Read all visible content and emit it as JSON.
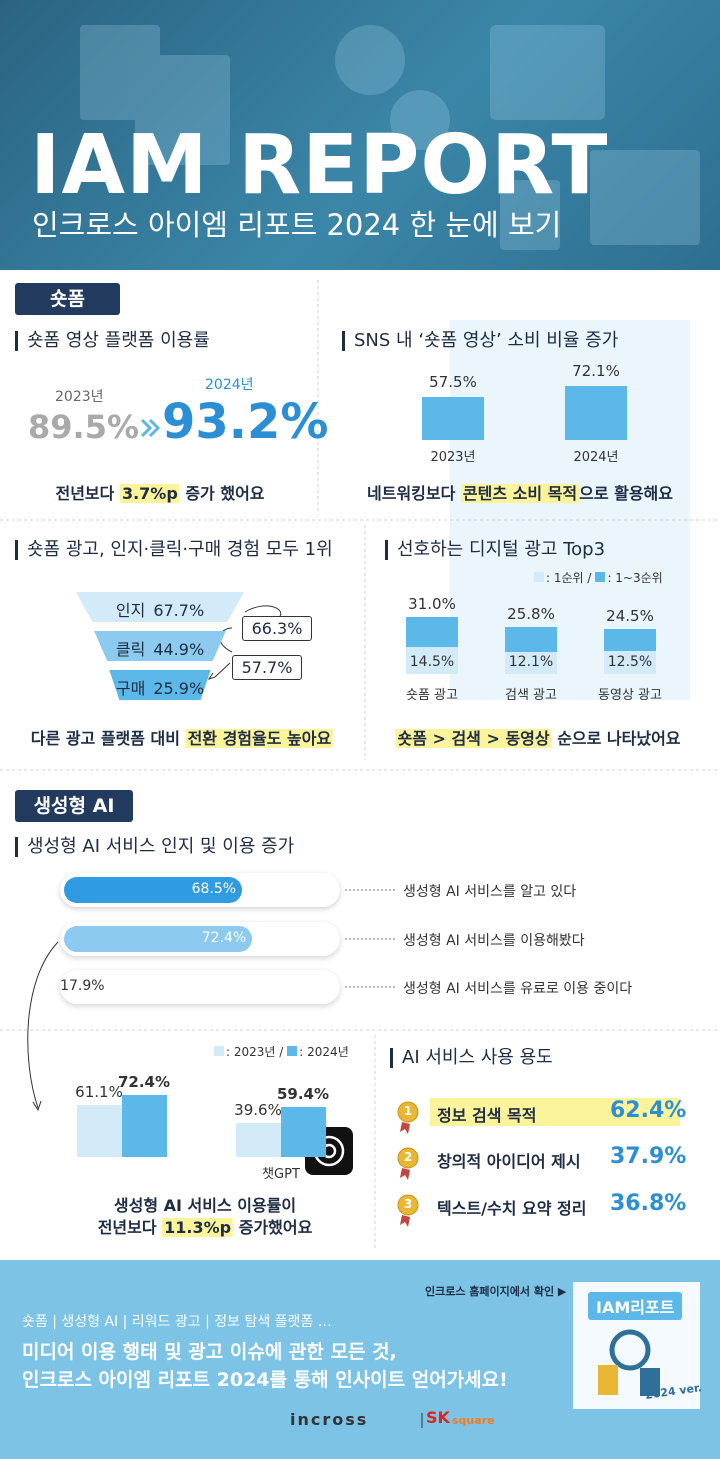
{
  "header": {
    "title": "IAM REPORT",
    "subtitle": "인크로스 아이엠 리포트 2024 한 눈에 보기"
  },
  "shortform": {
    "tag": "숏폼",
    "usage": {
      "title": "숏폼 영상 플랫폼 이용률",
      "years": [
        "2023년",
        "2024년"
      ],
      "rates": [
        "89.5%",
        "93.2%"
      ],
      "caption": {
        "before": "전년보다 ",
        "highlight": "3.7%p",
        "after": " 증가 했어요"
      }
    },
    "sns": {
      "title": "SNS 내 ‘숏폼 영상’ 소비 비율 증가",
      "categories": [
        "2023년",
        "2024년"
      ],
      "values": [
        57.5,
        72.1
      ],
      "value_labels": [
        "57.5%",
        "72.1%"
      ],
      "color": "#5bb8e8",
      "caption": {
        "before": "네트워킹보다 ",
        "highlight": "콘텐츠 소비 목적",
        "after": "으로 활용해요"
      }
    },
    "funnel": {
      "title": "숏폼 광고, 인지·클릭·구매 경험 모두 1위",
      "stages": [
        "인지",
        "클릭",
        "구매"
      ],
      "values": [
        67.7,
        44.9,
        25.9
      ],
      "value_labels": [
        "67.7%",
        "44.9%",
        "25.9%"
      ],
      "colors": [
        "#d3eaf8",
        "#8ccbef",
        "#5bb8e8"
      ],
      "conversions": [
        "66.3%",
        "57.7%"
      ],
      "caption": {
        "before": "다른 광고 플랫폼 대비 ",
        "highlight": "전환 경험율도 높아요"
      }
    },
    "top3": {
      "title": "선호하는 디지털 광고 Top3",
      "categories": [
        "숏폼 광고",
        "검색 광고",
        "동영상 광고"
      ],
      "series": [
        {
          "name": ": 1순위 /",
          "color": "#d3eaf8",
          "values": [
            14.5,
            12.1,
            12.5
          ],
          "value_labels": [
            "14.5%",
            "12.1%",
            "12.5%"
          ]
        },
        {
          "name": ": 1~3순위",
          "color": "#5bb8e8",
          "values": [
            31.0,
            25.8,
            24.5
          ],
          "value_labels": [
            "31.0%",
            "25.8%",
            "24.5%"
          ]
        }
      ],
      "caption": {
        "highlight": "숏폼 > 검색 > 동영상",
        "after": " 순으로 나타났어요"
      }
    }
  },
  "ai": {
    "tag": "생성형 AI",
    "awareness": {
      "title": "생성형 AI 서비스 인지 및 이용 증가",
      "statements": [
        "생성형 AI 서비스를 알고 있다",
        "생성형 AI 서비스를 이용해봤다",
        "생성형 AI 서비스를 유료로 이용 중이다"
      ],
      "values": [
        68.5,
        72.4,
        17.9
      ],
      "value_labels": [
        "68.5%",
        "72.4%",
        "17.9%"
      ],
      "colors": [
        "#2f9be0",
        "#8ccbef",
        "#ffffff"
      ]
    },
    "yearly": {
      "categories": [
        null,
        "챗GPT"
      ],
      "series": [
        {
          "name": ": 2023년 /",
          "color": "#d3eaf8",
          "values": [
            61.1,
            39.6
          ],
          "value_labels": [
            "61.1%",
            "39.6%"
          ]
        },
        {
          "name": ": 2024년",
          "color": "#5bb8e8",
          "values": [
            72.4,
            59.4
          ],
          "value_labels": [
            "72.4%",
            "59.4%"
          ]
        }
      ],
      "caption": [
        {
          "text": "생성형 AI 서비스 이용률이"
        },
        {
          "before": "전년보다 ",
          "highlight": "11.3%p",
          "after": " 증가했어요"
        }
      ]
    },
    "purposes": {
      "title": "AI 서비스 사용 용도",
      "ranks": [
        "1",
        "2",
        "3"
      ],
      "items": [
        "정보 검색 목적",
        "창의적 아이디어 제시",
        "텍스트/수치 요약 정리"
      ],
      "rates": [
        "62.4%",
        "37.9%",
        "36.8%"
      ]
    }
  },
  "footer": {
    "link": "인크로스 홈페이지에서 확인 ▶",
    "tags": "숏폼 | 생성형 AI | 리워드 광고 | 정보 탐색 플랫폼 …",
    "headline": [
      "미디어 이용 행태 및 광고 이슈에 관한 모든 것,",
      "인크로스 아이엠 리포트 2024를 통해 인사이트 얻어가세요!"
    ],
    "book_title": "IAM리포트",
    "book_badge": "2024 ver.",
    "logo": {
      "brand": "incross",
      "partner": "SK",
      "partner_sub": "square"
    }
  }
}
